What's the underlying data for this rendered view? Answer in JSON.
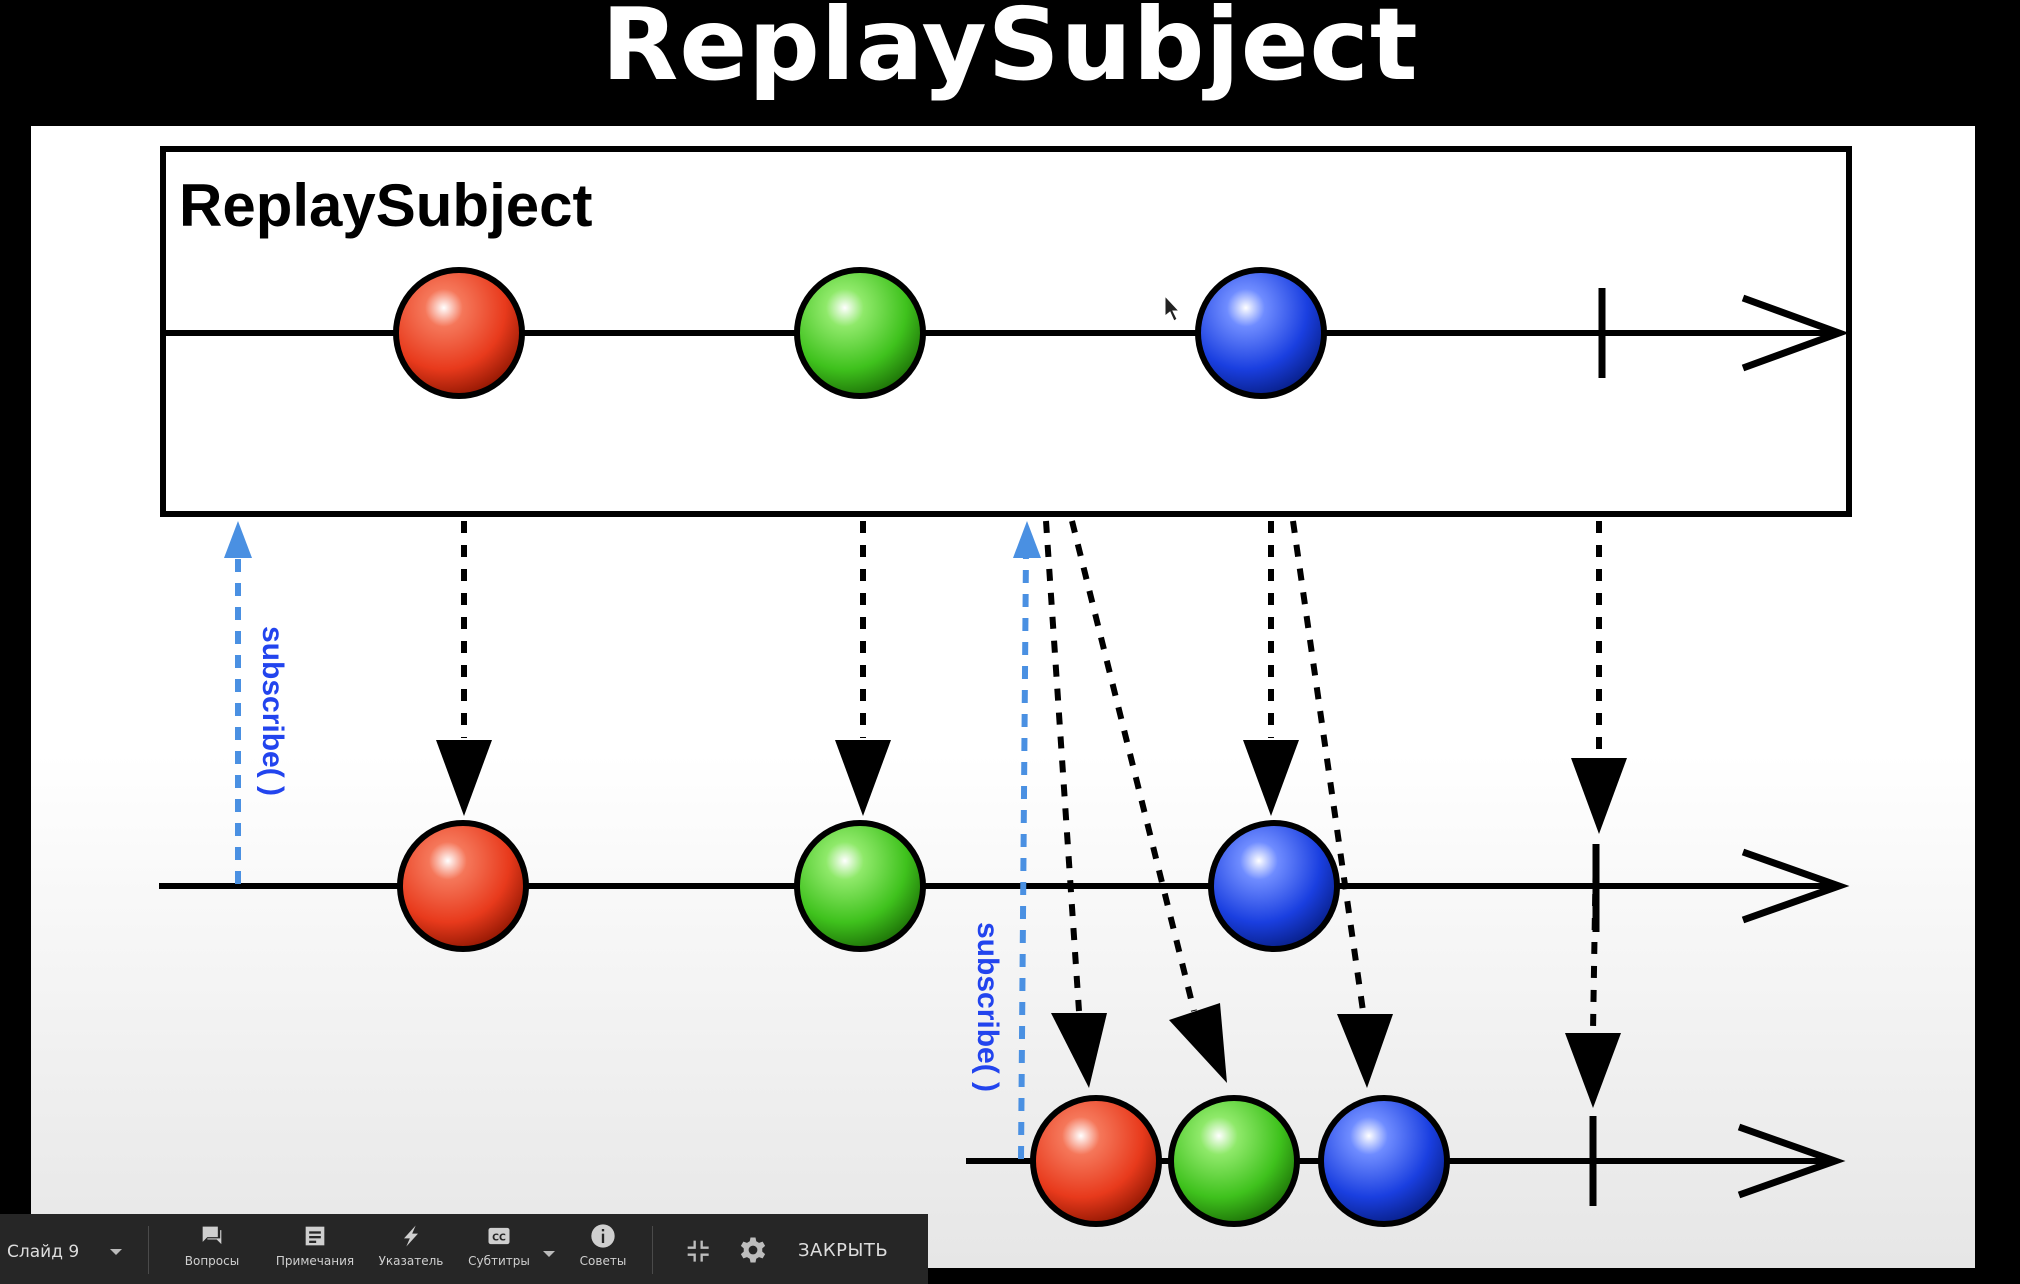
{
  "slide": {
    "title": "ReplaySubject",
    "diagram": {
      "box_label": "ReplaySubject",
      "subscribe_label_1": "subscribe( )",
      "subscribe_label_2": "subscribe( )",
      "colors": {
        "red": "#e83a1c",
        "green": "#3fc21d",
        "blue": "#1a3fe0",
        "subscribe_arrow": "#4a90e2",
        "subscribe_text": "#2244ee"
      }
    }
  },
  "toolbar": {
    "slide_label": "Слайд 9",
    "buttons": [
      {
        "label": "Вопросы",
        "icon": "chat-bubble-icon"
      },
      {
        "label": "Примечания",
        "icon": "notes-icon"
      },
      {
        "label": "Указатель",
        "icon": "laser-pointer-icon"
      },
      {
        "label": "Субтитры",
        "icon": "closed-captions-icon"
      },
      {
        "label": "Советы",
        "icon": "info-icon"
      }
    ],
    "close_label": "ЗАКРЫТЬ"
  }
}
